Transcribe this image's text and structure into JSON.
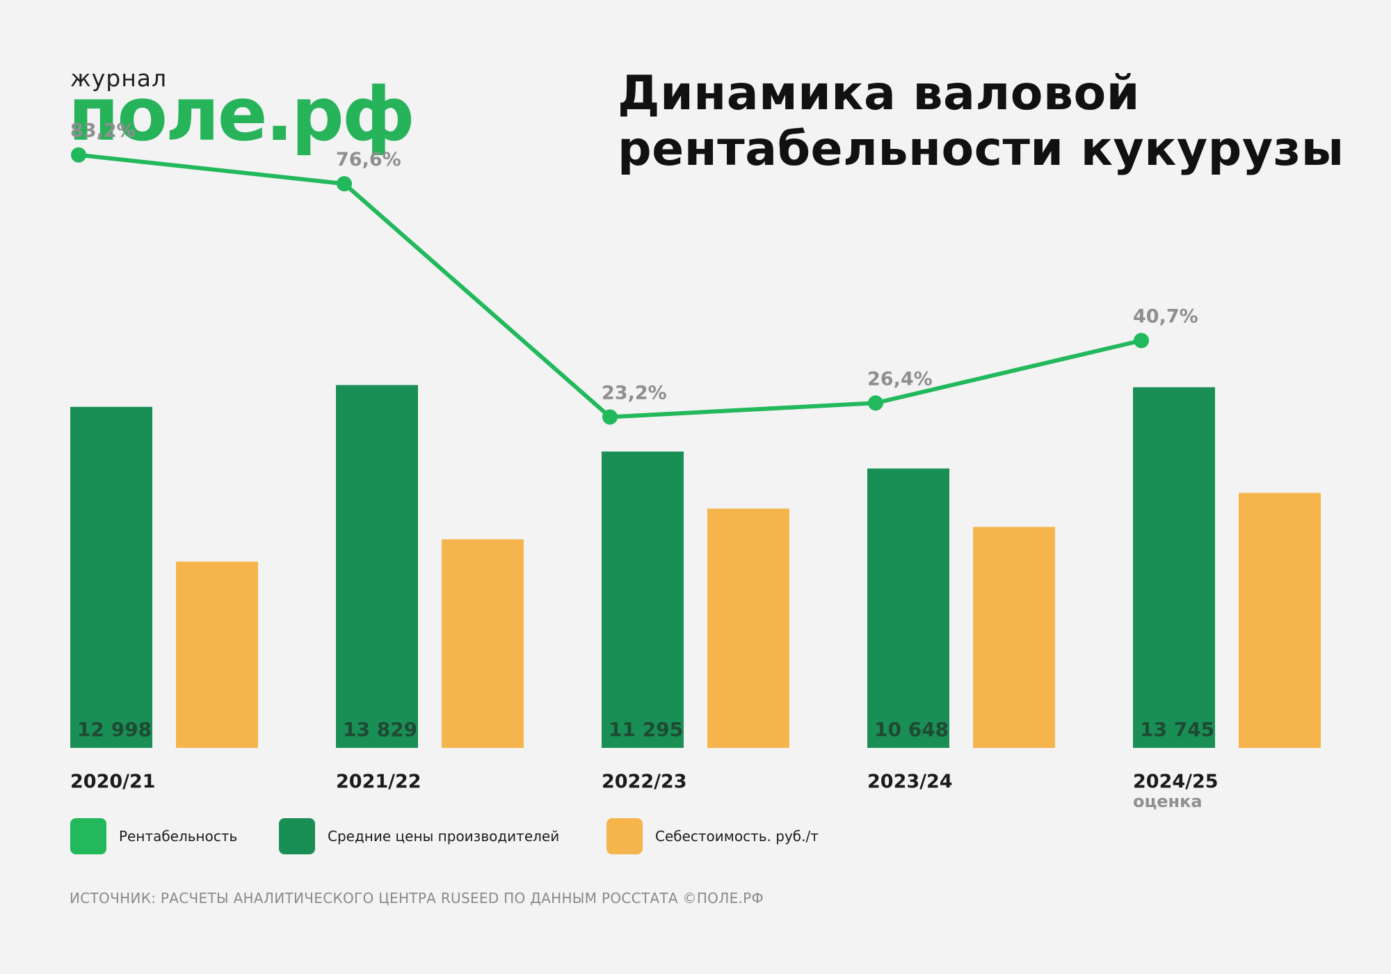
{
  "logo": {
    "top": "журнал",
    "main": "поле.рф"
  },
  "title": "Динамика валовой рентабельности кукурузы",
  "colors": {
    "line": "#22b85c",
    "price_bar": "#1a8f55",
    "cost_bar": "#f5b54c",
    "point_label": "#8f8f8f",
    "bar_label": "#1f4a33",
    "category_label": "#1b1b1b",
    "note": "#8f8f8f"
  },
  "chart_data": {
    "type": "bar",
    "categories": [
      "2020/21",
      "2021/22",
      "2022/23",
      "2023/24",
      "2024/25"
    ],
    "category_notes": [
      "",
      "",
      "",
      "",
      "оценка"
    ],
    "series": [
      {
        "name": "Средние цены производителей",
        "type": "bar",
        "values": [
          12998,
          13829,
          11295,
          10648,
          13745
        ],
        "labels": [
          "12 998",
          "13 829",
          "11 295",
          "10 648",
          "13 745"
        ]
      },
      {
        "name": "Себестоимость. руб./т",
        "type": "bar",
        "values": [
          7100,
          7950,
          9120,
          8420,
          9720
        ]
      },
      {
        "name": "Рентабельность",
        "type": "line",
        "values": [
          83.2,
          76.6,
          23.2,
          26.4,
          40.7
        ],
        "labels": [
          "83,2%",
          "76,6%",
          "23,2%",
          "26,4%",
          "40,7%"
        ]
      }
    ],
    "bar_ylim": [
      0,
      14000
    ],
    "line_ylim": [
      0,
      90
    ],
    "grid": false,
    "legend_position": "bottom-left"
  },
  "legend": [
    {
      "label": "Рентабельность",
      "color": "#22b85c"
    },
    {
      "label": "Средние цены производителей",
      "color": "#1a8f55"
    },
    {
      "label": "Себестоимость. руб./т",
      "color": "#f5b54c"
    }
  ],
  "source": "ИСТОЧНИК: РАСЧЕТЫ АНАЛИТИЧЕСКОГО ЦЕНТРА RUSEED ПО ДАННЫМ РОССТАТА ©ПОЛЕ.РФ"
}
